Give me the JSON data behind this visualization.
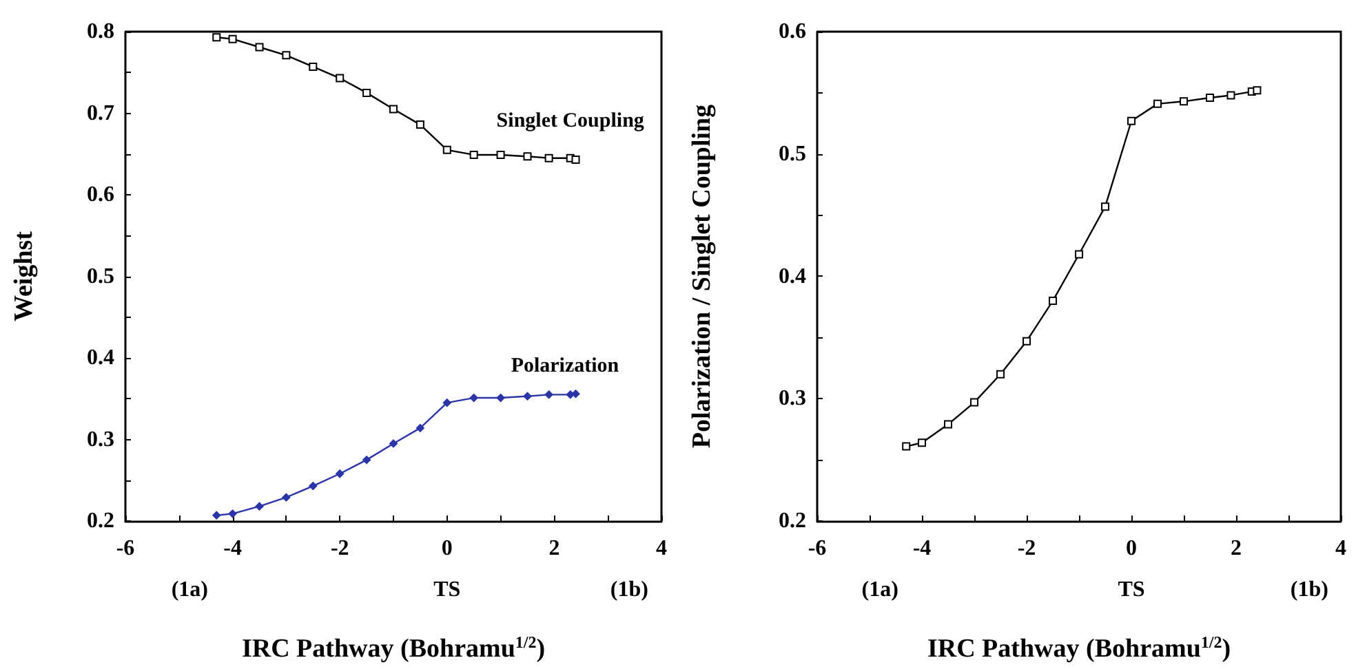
{
  "chart_data": [
    {
      "type": "line",
      "xlabel": "IRC Pathway (Bohramu$^{1/2}$)",
      "ylabel": "Weighst",
      "x": [
        -4.3,
        -4,
        -3.5,
        -3,
        -2.5,
        -2,
        -1.5,
        -1,
        -0.5,
        0,
        0.5,
        1,
        1.5,
        1.9,
        2.3,
        2.4
      ],
      "series": [
        {
          "name": "Singlet Coupling",
          "color": "#000000",
          "marker": "square",
          "values": [
            0.793,
            0.791,
            0.781,
            0.771,
            0.757,
            0.743,
            0.725,
            0.705,
            0.686,
            0.655,
            0.649,
            0.649,
            0.647,
            0.645,
            0.645,
            0.643
          ]
        },
        {
          "name": "Polarization",
          "color": "#2b35a8",
          "marker": "diamond",
          "values": [
            0.207,
            0.209,
            0.218,
            0.229,
            0.243,
            0.258,
            0.275,
            0.295,
            0.314,
            0.345,
            0.351,
            0.351,
            0.353,
            0.355,
            0.355,
            0.356
          ]
        }
      ],
      "xlim": [
        -6,
        4
      ],
      "xticks": [
        -6,
        {
          "value": -5,
          "label": null
        },
        -4,
        {
          "value": -3,
          "label": null
        },
        -2,
        {
          "value": -1,
          "label": null
        },
        0,
        {
          "value": 1,
          "label": null
        },
        2,
        {
          "value": 3,
          "label": null
        },
        4
      ],
      "ylim": [
        0.2,
        0.8
      ],
      "yticks": [
        0.2,
        {
          "value": 0.25,
          "label": null
        },
        0.3,
        {
          "value": 0.35,
          "label": null
        },
        0.4,
        {
          "value": 0.45,
          "label": null
        },
        0.5,
        {
          "value": 0.55,
          "label": null
        },
        0.6,
        {
          "value": 0.65,
          "label": null
        },
        0.7,
        {
          "value": 0.75,
          "label": null
        },
        0.8
      ],
      "annotations": [
        "(1a)",
        "TS",
        "(1b)"
      ],
      "grid": false,
      "legend": false,
      "line_style": "solid"
    },
    {
      "type": "line",
      "xlabel": "IRC Pathway (Bohramu$^{1/2}$)",
      "ylabel": "Polarization / Singlet Coupling",
      "x": [
        -4.3,
        -4,
        -3.5,
        -3,
        -2.5,
        -2,
        -1.5,
        -1,
        -0.5,
        0,
        0.5,
        1,
        1.5,
        1.9,
        2.3,
        2.4
      ],
      "series": [
        {
          "color": "#000000",
          "marker": "square",
          "values": [
            0.261,
            0.264,
            0.279,
            0.297,
            0.32,
            0.347,
            0.38,
            0.418,
            0.457,
            0.527,
            0.541,
            0.543,
            0.546,
            0.548,
            0.551,
            0.552
          ]
        }
      ],
      "xlim": [
        -6,
        4
      ],
      "xticks": [
        -6,
        {
          "value": -5,
          "label": null
        },
        -4,
        {
          "value": -3,
          "label": null
        },
        -2,
        {
          "value": -1,
          "label": null
        },
        0,
        {
          "value": 1,
          "label": null
        },
        2,
        {
          "value": 3,
          "label": null
        },
        4
      ],
      "ylim": [
        0.2,
        0.6
      ],
      "yticks": [
        0.2,
        {
          "value": 0.25,
          "label": null
        },
        0.3,
        {
          "value": 0.35,
          "label": null
        },
        0.4,
        {
          "value": 0.45,
          "label": null
        },
        0.5,
        {
          "value": 0.55,
          "label": null
        },
        0.6
      ],
      "annotations": [
        "(1a)",
        "TS",
        "(1b)"
      ],
      "grid": false,
      "legend": false,
      "line_style": "solid"
    }
  ]
}
